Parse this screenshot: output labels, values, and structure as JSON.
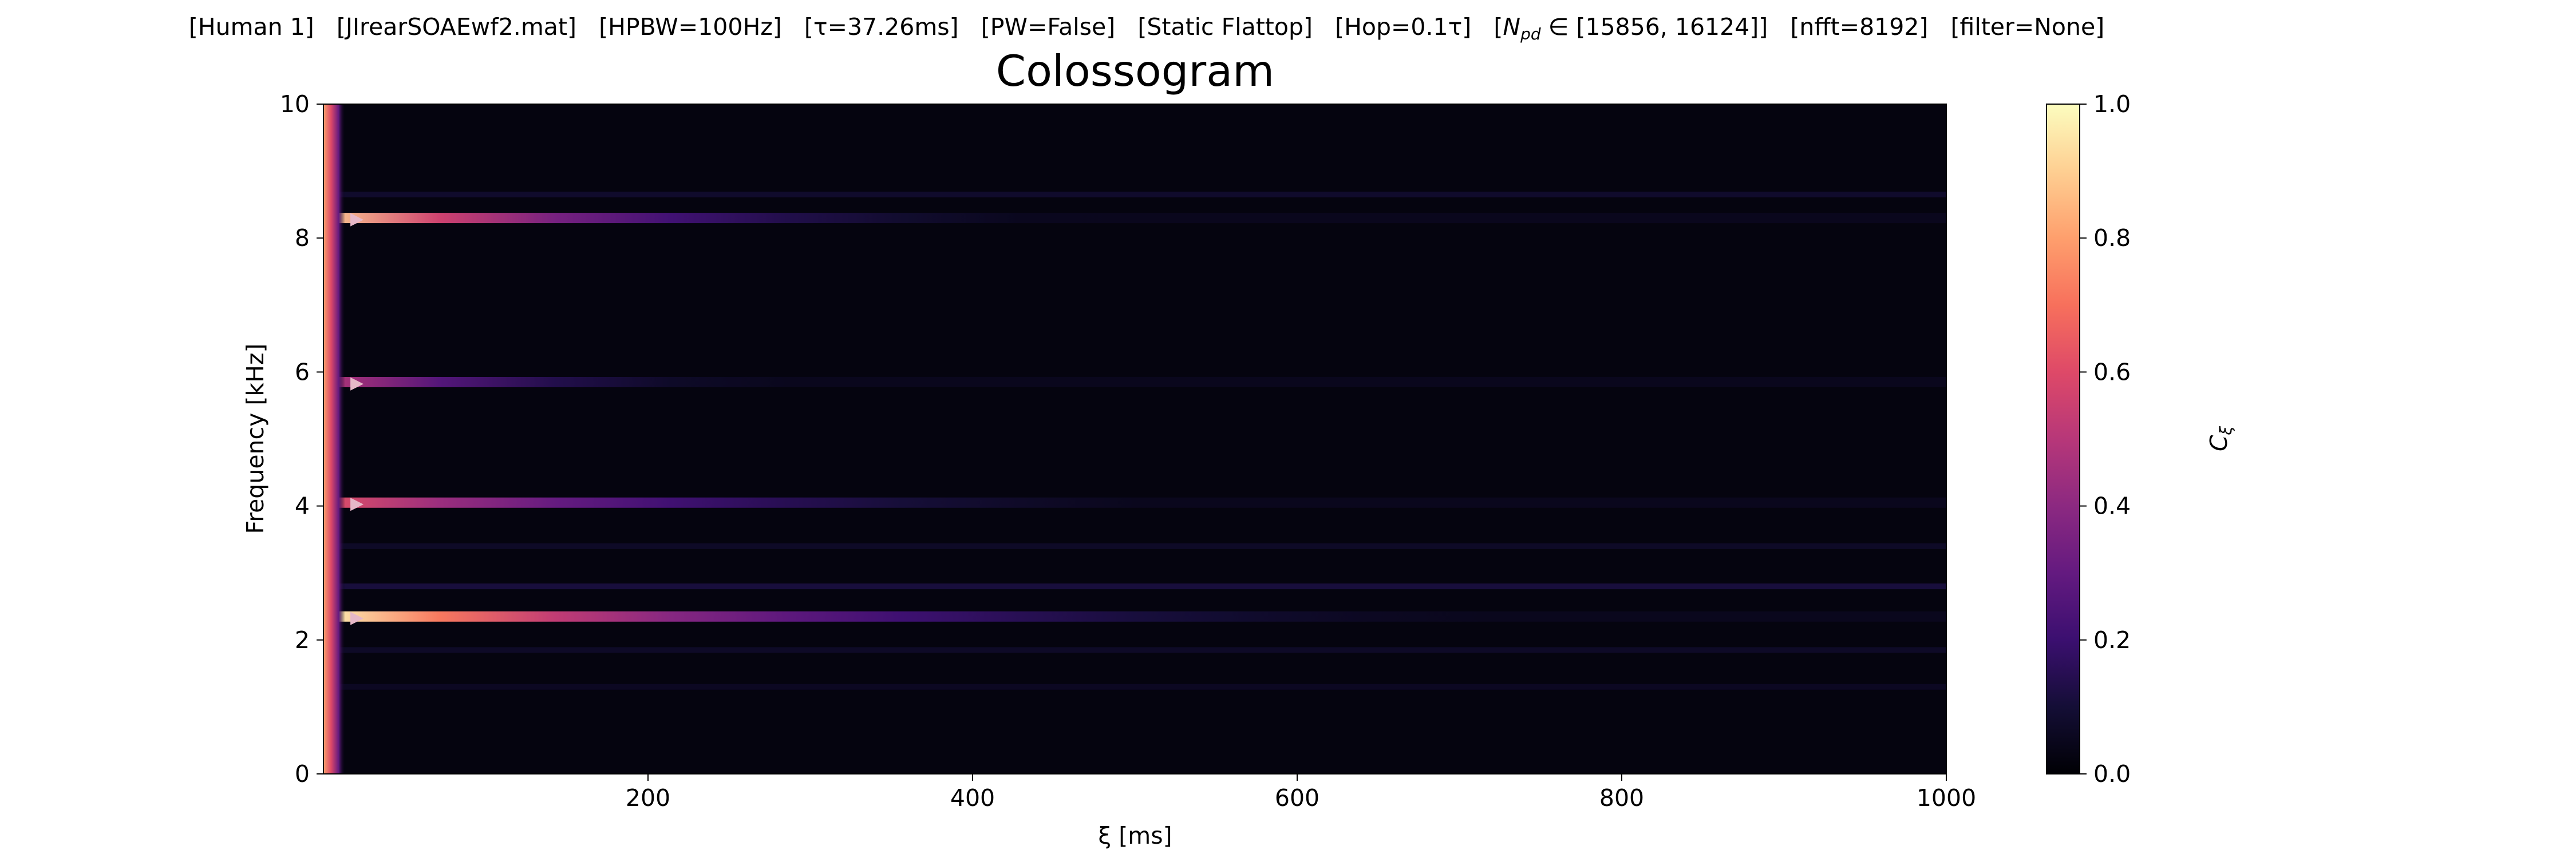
{
  "chart_data": {
    "type": "heatmap",
    "title": "Colossogram",
    "subtitle": {
      "human": "[Human 1]",
      "file": "[JIrearSOAEwf2.mat]",
      "hpbw": "[HPBW=100Hz]",
      "tau": "[τ=37.26ms]",
      "pw": "[PW=False]",
      "window": "[Static Flattop]",
      "hop": "[Hop=0.1τ]",
      "npd_prefix": "[",
      "npd_symbol": "N",
      "npd_sub": "pd",
      "npd_rest": " ∈ [15856, 16124]]",
      "nfft": "[nfft=8192]",
      "filter": "[filter=None]"
    },
    "xlabel": "ξ [ms]",
    "ylabel": "Frequency [kHz]",
    "colorbar_label_main": "C",
    "colorbar_label_sub": "ξ",
    "colormap": "magma",
    "xlim": [
      0,
      1000
    ],
    "ylim": [
      0,
      10
    ],
    "clim": [
      0,
      1
    ],
    "xticks": [
      200,
      400,
      600,
      800,
      1000
    ],
    "yticks": [
      0,
      2,
      4,
      6,
      8,
      10
    ],
    "cticks": [
      0.0,
      0.2,
      0.4,
      0.6,
      0.8,
      1.0
    ],
    "xtick_labels": [
      "200",
      "400",
      "600",
      "800",
      "1000"
    ],
    "ytick_labels": [
      "0",
      "2",
      "4",
      "6",
      "8",
      "10"
    ],
    "ctick_labels": [
      "0.0",
      "0.2",
      "0.4",
      "0.6",
      "0.8",
      "1.0"
    ],
    "peaks": [
      {
        "freq_khz": 8.3,
        "coherence_at_start": 0.9,
        "decay_ms": 150
      },
      {
        "freq_khz": 5.85,
        "coherence_at_start": 0.5,
        "decay_ms": 110
      },
      {
        "freq_khz": 4.05,
        "coherence_at_start": 0.62,
        "decay_ms": 200
      },
      {
        "freq_khz": 2.35,
        "coherence_at_start": 0.98,
        "decay_ms": 230
      }
    ],
    "faint_bands": [
      {
        "freq_khz": 8.65,
        "level": 0.08
      },
      {
        "freq_khz": 3.4,
        "level": 0.07
      },
      {
        "freq_khz": 2.8,
        "level": 0.11
      },
      {
        "freq_khz": 1.85,
        "level": 0.07
      },
      {
        "freq_khz": 1.3,
        "level": 0.06
      }
    ],
    "marker_symbol": "▶"
  }
}
